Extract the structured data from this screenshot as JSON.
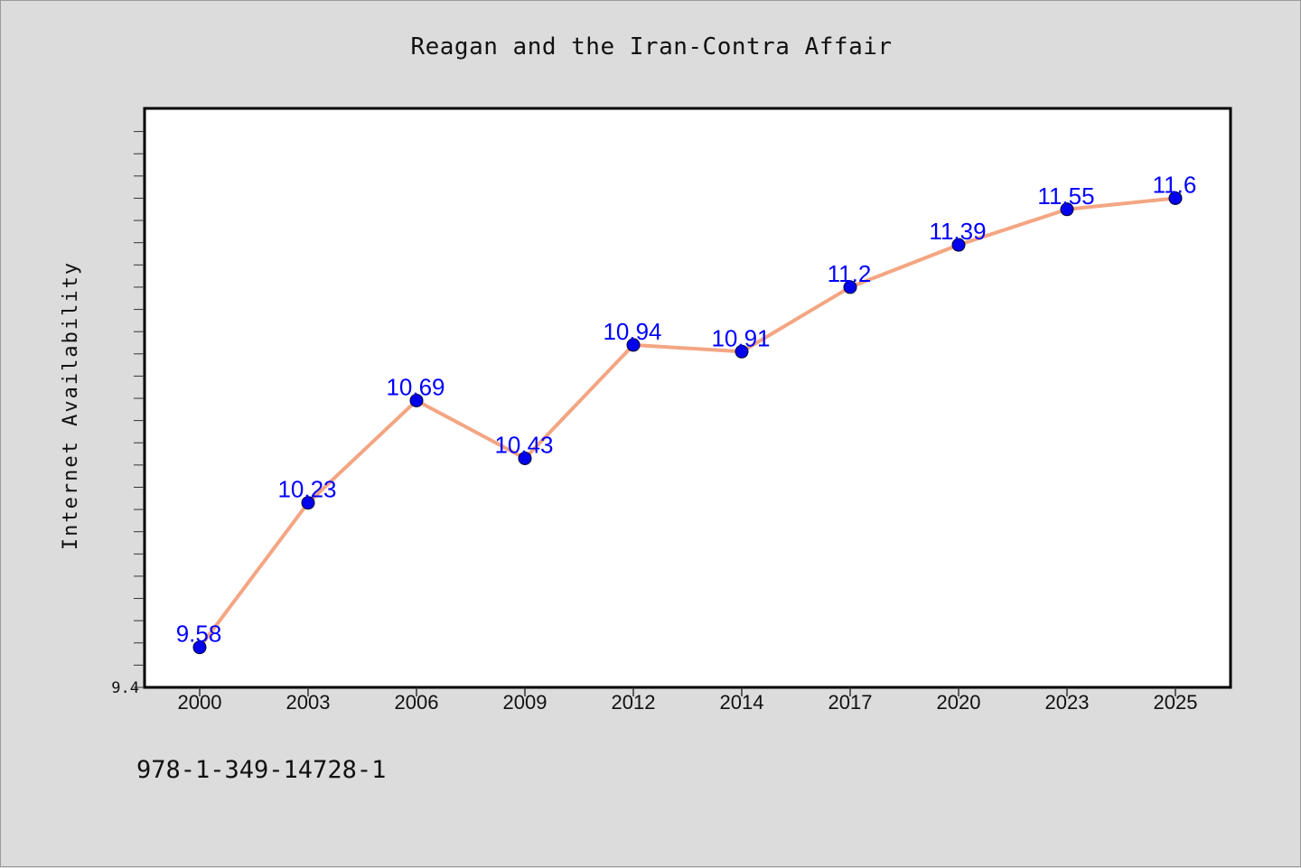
{
  "chart_data": {
    "type": "line",
    "title": "Reagan and the Iran-Contra Affair",
    "ylabel": "Internet Availability",
    "xlabel": "",
    "categories": [
      "2000",
      "2003",
      "2006",
      "2009",
      "2012",
      "2014",
      "2017",
      "2020",
      "2023",
      "2025"
    ],
    "values": [
      9.58,
      10.23,
      10.69,
      10.43,
      10.94,
      10.91,
      11.2,
      11.39,
      11.55,
      11.6
    ],
    "data_labels": [
      "9.58",
      "10.23",
      "10.69",
      "10.43",
      "10.94",
      "10.91",
      "11.2",
      "11.39",
      "11.55",
      "11.6"
    ],
    "ylim": [
      9.4,
      12.0
    ],
    "y_tick_labels": [
      "9.4"
    ],
    "grid": false,
    "line_color": "#f4a582",
    "marker_color": "#0000ee",
    "label_color": "#0000ff"
  },
  "footer": {
    "text": "978-1-349-14728-1"
  }
}
